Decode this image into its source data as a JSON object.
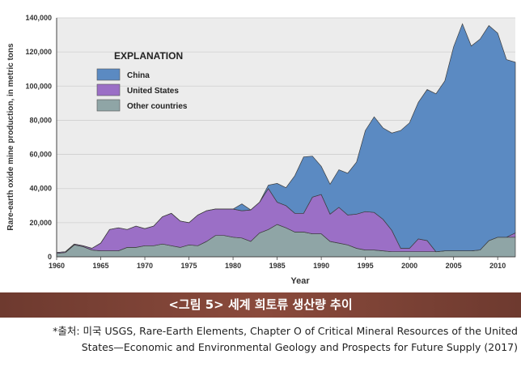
{
  "chart_data": {
    "type": "area",
    "stacked": true,
    "xlabel": "Year",
    "ylabel": "Rare-earth oxide mine production, in metric tons",
    "xlim": [
      1960,
      2012
    ],
    "ylim": [
      0,
      140000
    ],
    "x_ticks": [
      "1960",
      "1965",
      "1970",
      "1975",
      "1980",
      "1985",
      "1990",
      "1995",
      "2000",
      "2005",
      "2010"
    ],
    "y_ticks": [
      "0",
      "20,000",
      "40,000",
      "60,000",
      "80,000",
      "100,000",
      "120,000",
      "140,000"
    ],
    "legend_title": "EXPLANATION",
    "legend_position": "top-left",
    "x": [
      1960,
      1961,
      1962,
      1963,
      1964,
      1965,
      1966,
      1967,
      1968,
      1969,
      1970,
      1971,
      1972,
      1973,
      1974,
      1975,
      1976,
      1977,
      1978,
      1979,
      1980,
      1981,
      1982,
      1983,
      1984,
      1985,
      1986,
      1987,
      1988,
      1989,
      1990,
      1991,
      1992,
      1993,
      1994,
      1995,
      1996,
      1997,
      1998,
      1999,
      2000,
      2001,
      2002,
      2003,
      2004,
      2005,
      2006,
      2007,
      2008,
      2009,
      2010,
      2011,
      2012
    ],
    "series": [
      {
        "name": "Other countries",
        "color": "#8fa5a6",
        "values": [
          2000,
          2500,
          7000,
          6000,
          4000,
          3500,
          3500,
          3500,
          5500,
          5500,
          6500,
          6500,
          7500,
          6500,
          5500,
          7000,
          6500,
          9000,
          12500,
          12500,
          11500,
          11000,
          9000,
          14000,
          16000,
          19000,
          17000,
          14500,
          14500,
          13500,
          13500,
          9000,
          8000,
          7000,
          5000,
          4000,
          4000,
          3500,
          3000,
          3000,
          3000,
          3000,
          3000,
          3000,
          3500,
          3500,
          3500,
          3500,
          4000,
          9500,
          11500,
          11500,
          11500
        ]
      },
      {
        "name": "United States",
        "color": "#9b6fc6",
        "values": [
          500,
          500,
          500,
          500,
          1000,
          4500,
          12500,
          13500,
          10500,
          12500,
          10000,
          11500,
          16000,
          19000,
          15500,
          13000,
          18000,
          18000,
          15500,
          15500,
          16500,
          16000,
          18500,
          18000,
          24000,
          13000,
          13000,
          11000,
          11000,
          21500,
          23000,
          16000,
          21000,
          17500,
          20000,
          22500,
          22000,
          18500,
          12500,
          2000,
          2000,
          7500,
          6500,
          0,
          0,
          0,
          0,
          0,
          0,
          0,
          0,
          0,
          2500
        ]
      },
      {
        "name": "China",
        "color": "#5b8ac2",
        "values": [
          0,
          0,
          0,
          0,
          0,
          0,
          0,
          0,
          0,
          0,
          0,
          0,
          0,
          0,
          0,
          0,
          0,
          0,
          0,
          0,
          0,
          4000,
          0,
          0,
          2000,
          11000,
          10500,
          22000,
          33000,
          24000,
          16500,
          17500,
          22000,
          24500,
          30500,
          47500,
          56000,
          53500,
          57000,
          69000,
          73500,
          80000,
          88500,
          92500,
          99500,
          119500,
          133000,
          120000,
          123500,
          126000,
          119500,
          104000,
          100000
        ]
      }
    ]
  },
  "caption": "<그림 5> 세계 희토류 생산량 추이",
  "source_line1": "*출처: 미국 USGS, Rare-Earth Elements, Chapter O of Critical Mineral Resources of the United",
  "source_line2": "States—Economic and Environmental Geology and Prospects for Future Supply (2017)"
}
